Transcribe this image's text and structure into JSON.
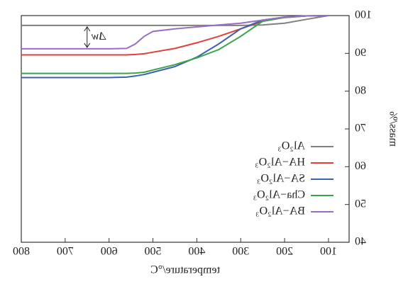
{
  "chart_data": {
    "type": "line",
    "x_label": "temperature/°C",
    "y_label": "mass/%",
    "annotation": "Δw",
    "x": [
      100,
      150,
      200,
      250,
      300,
      350,
      400,
      450,
      500,
      520,
      540,
      560,
      600,
      700,
      800
    ],
    "series": [
      {
        "name": "Al₂O₃",
        "color": "#808080",
        "values": [
          100,
          99,
          98,
          97.5,
          97.4,
          97.4,
          97.4,
          97.4,
          97.4,
          97.4,
          97.4,
          97.4,
          97.4,
          97.4,
          97.4
        ]
      },
      {
        "name": "HA−Al₂O₃",
        "color": "#e0403a",
        "values": [
          100,
          99.9,
          99.5,
          98.5,
          96.5,
          94.5,
          92.8,
          91.3,
          90.3,
          89.9,
          89.7,
          89.6,
          89.6,
          89.6,
          89.6
        ]
      },
      {
        "name": "SA−Al₂O₃",
        "color": "#3c62b0",
        "values": [
          100,
          99.9,
          99.6,
          98.8,
          96.5,
          92.5,
          89,
          86.5,
          85,
          84.4,
          84,
          83.7,
          83.6,
          83.6,
          83.6
        ]
      },
      {
        "name": "Cha−Al₂O₃",
        "color": "#3aa546",
        "values": [
          100,
          99.9,
          99.5,
          98.5,
          94.5,
          91,
          88.8,
          87,
          85.6,
          85,
          84.8,
          84.7,
          84.7,
          84.7,
          84.7
        ]
      },
      {
        "name": "BA−Al₂O₃",
        "color": "#9b6cc4",
        "values": [
          100,
          99.9,
          99.6,
          98.8,
          98,
          97.5,
          97,
          96.5,
          95.8,
          94.5,
          92.5,
          91.3,
          91.2,
          91.2,
          91.2
        ]
      }
    ],
    "xlim": [
      53,
      800
    ],
    "xticks": [
      100,
      200,
      300,
      400,
      500,
      600,
      700,
      800
    ],
    "ylim": [
      40,
      100
    ],
    "yticks": [
      40,
      50,
      60,
      70,
      80,
      90,
      100
    ],
    "legend": "lower left",
    "mirrored": true
  }
}
